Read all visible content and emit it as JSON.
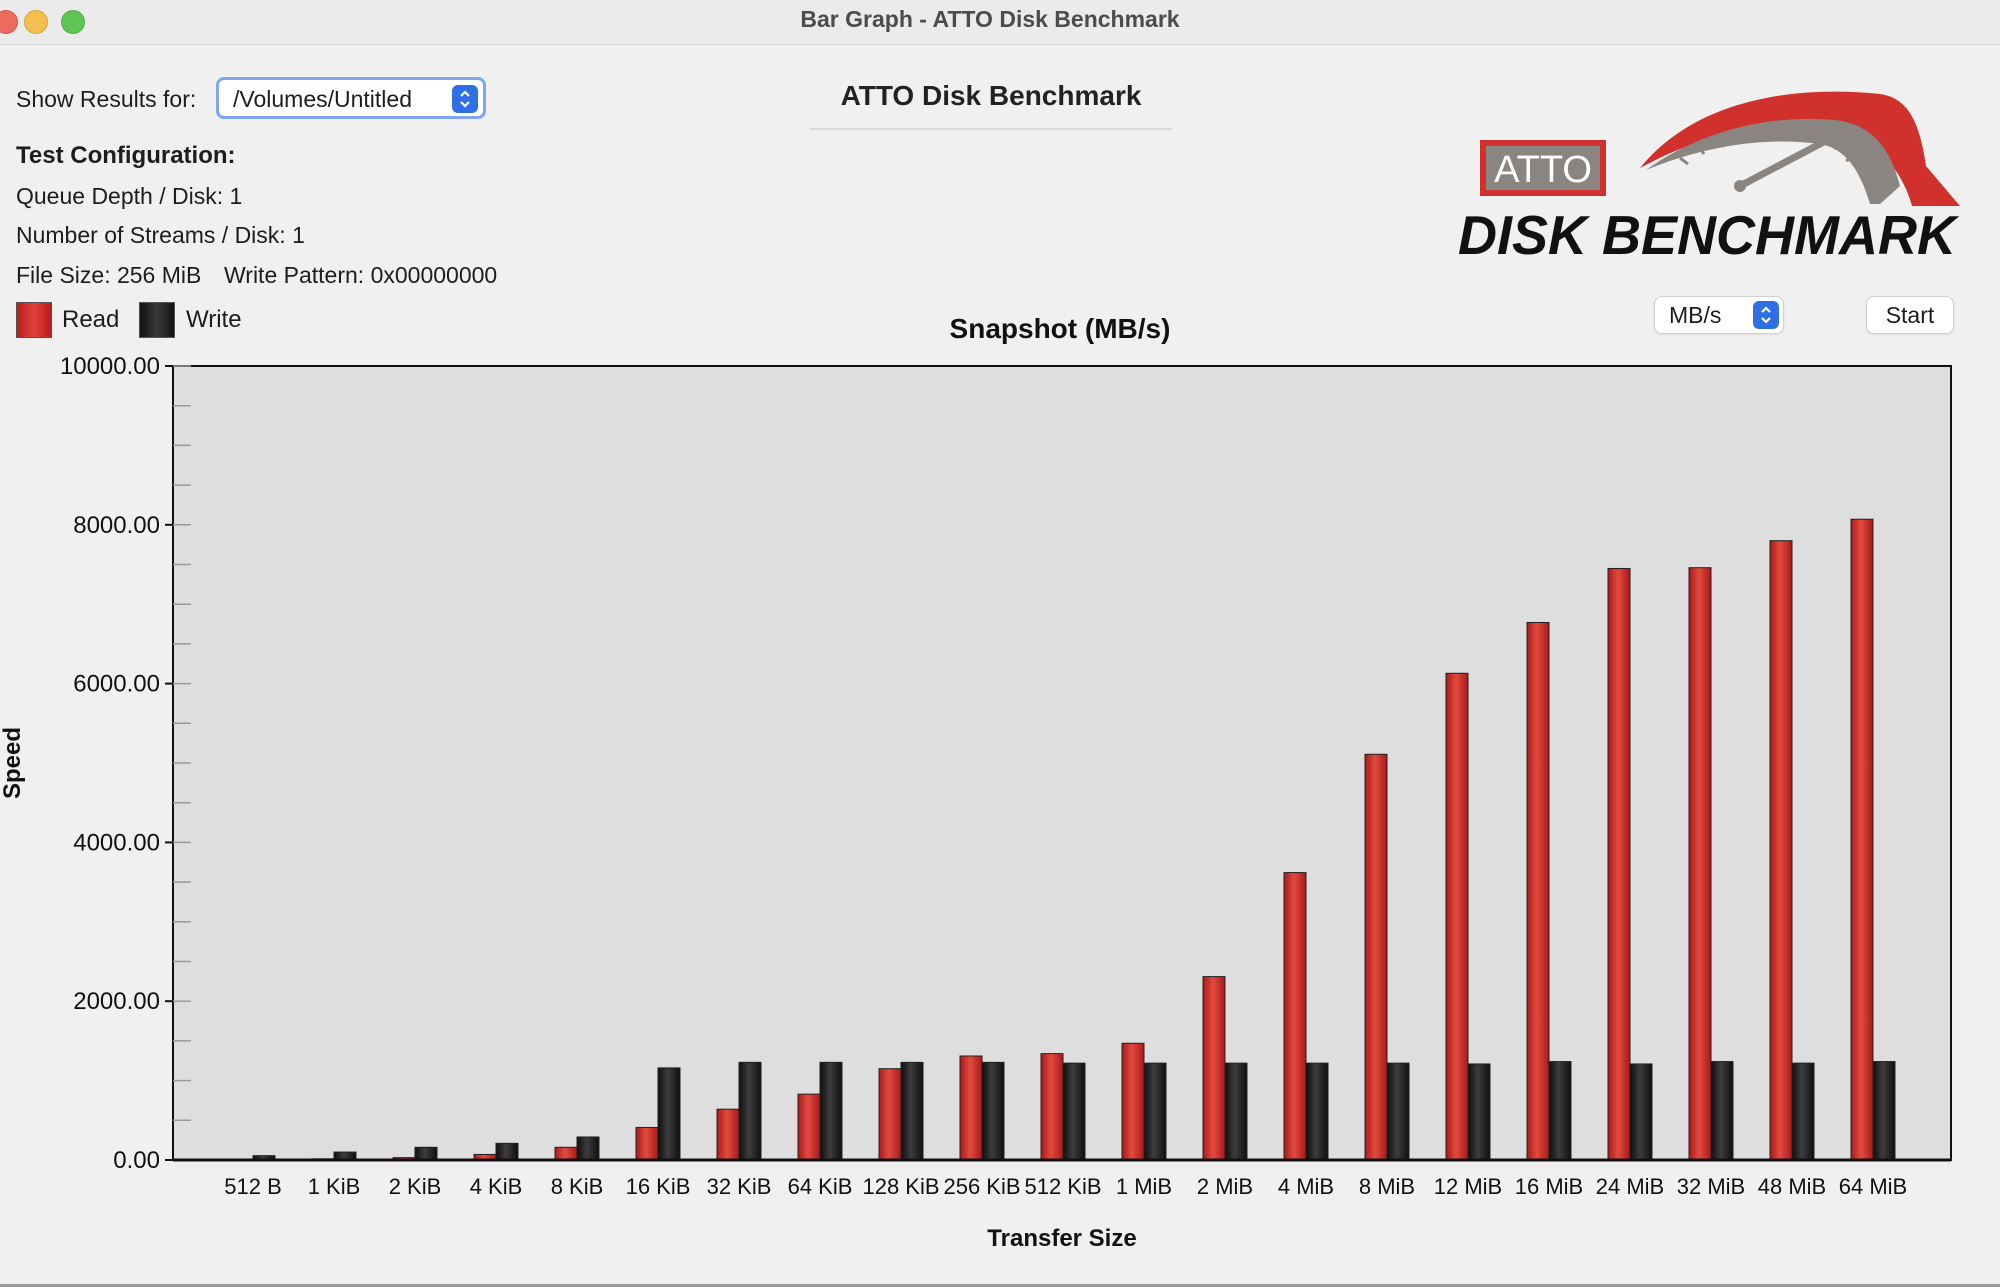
{
  "window": {
    "title": "Bar Graph - ATTO Disk Benchmark"
  },
  "header": {
    "show_results_label": "Show Results for:",
    "results_selected": "/Volumes/Untitled",
    "app_title": "ATTO Disk Benchmark"
  },
  "config": {
    "title": "Test Configuration:",
    "queue_depth": "Queue Depth / Disk: 1",
    "streams": "Number of Streams / Disk: 1",
    "file_size": "File Size: 256 MiB",
    "write_pattern": "Write Pattern: 0x00000000"
  },
  "legend": {
    "read": "Read",
    "write": "Write"
  },
  "controls": {
    "units_selected": "MB/s",
    "start_label": "Start"
  },
  "logo": {
    "badge_text": "ATTO",
    "wordmark": "DISK BENCHMARK",
    "colors": {
      "red": "#d0312d",
      "gray": "#8a8580",
      "dark": "#111111"
    }
  },
  "chart_data": {
    "type": "bar",
    "title": "Snapshot (MB/s)",
    "xlabel": "Transfer Size",
    "ylabel": "Speed",
    "ylim": [
      0,
      10000
    ],
    "yticks": [
      "0.00",
      "2000.00",
      "4000.00",
      "6000.00",
      "8000.00",
      "10000.00"
    ],
    "grid": false,
    "categories": [
      "512 B",
      "1 KiB",
      "2 KiB",
      "4 KiB",
      "8 KiB",
      "16 KiB",
      "32 KiB",
      "64 KiB",
      "128 KiB",
      "256 KiB",
      "512 KiB",
      "1 MiB",
      "2 MiB",
      "4 MiB",
      "8 MiB",
      "12 MiB",
      "16 MiB",
      "24 MiB",
      "32 MiB",
      "48 MiB",
      "64 MiB"
    ],
    "series": [
      {
        "name": "Read",
        "color": "#d0312d",
        "values": [
          5,
          15,
          30,
          70,
          160,
          410,
          640,
          830,
          1150,
          1310,
          1340,
          1470,
          2310,
          3620,
          5110,
          6130,
          6770,
          7450,
          7460,
          7800,
          8070
        ]
      },
      {
        "name": "Write",
        "color": "#262626",
        "values": [
          55,
          100,
          160,
          210,
          290,
          1160,
          1230,
          1230,
          1230,
          1230,
          1220,
          1220,
          1220,
          1220,
          1220,
          1210,
          1240,
          1210,
          1240,
          1220,
          1240
        ]
      }
    ]
  }
}
